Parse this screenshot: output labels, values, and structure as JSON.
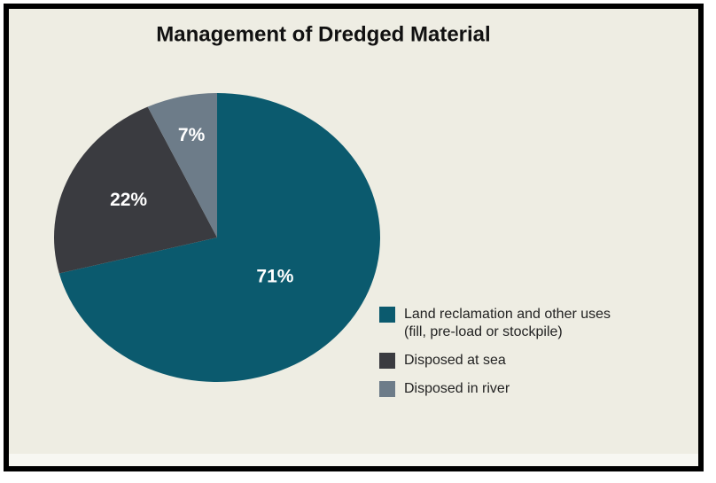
{
  "chart_data": {
    "type": "pie",
    "title": "Management of Dredged Material",
    "categories": [
      "Land reclamation and other uses (fill, pre-load or stockpile)",
      "Disposed at sea",
      "Disposed in river"
    ],
    "values": [
      71,
      22,
      7
    ],
    "value_labels": [
      "71%",
      "22%",
      "7%"
    ],
    "colors": [
      "#0b5a6e",
      "#3a3b40",
      "#6d7c89"
    ]
  }
}
